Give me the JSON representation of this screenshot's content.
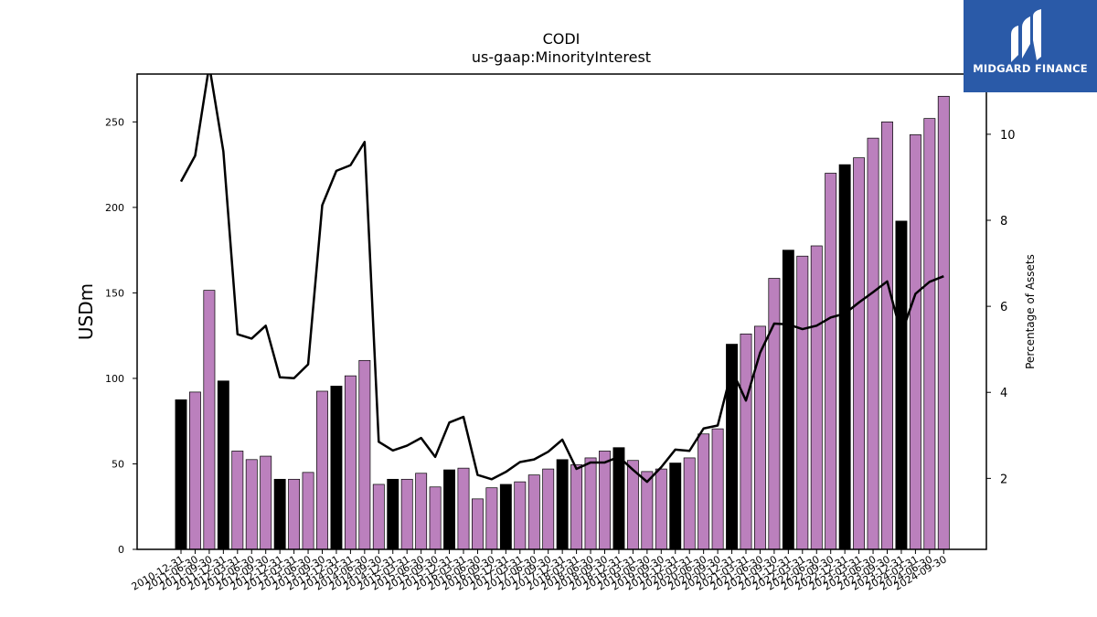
{
  "logo": {
    "text": "MIDGARD FINANCE",
    "icon": "midgard-logo-icon",
    "background": "#2a5aa8"
  },
  "chart_data": {
    "type": "bar",
    "title": "CODI",
    "subtitle": "us-gaap:MinorityInterest",
    "ylabel": "USDm",
    "y2label": "Percentage of Assets",
    "ylim": [
      0,
      278
    ],
    "y2lim": [
      0.35,
      11.4
    ],
    "yticks": [
      0,
      50,
      100,
      150,
      200,
      250
    ],
    "y2ticks": [
      2,
      4,
      6,
      8,
      10
    ],
    "grid": false,
    "legend": "none",
    "colors": {
      "annual": "#000000",
      "quarterly": "#bb80bd",
      "line": "#000000"
    },
    "categories": [
      "2010-12-31",
      "2011-06-30",
      "2011-09-30",
      "2011-12-31",
      "2012-03-31",
      "2012-06-30",
      "2012-09-30",
      "2012-12-31",
      "2013-03-31",
      "2013-06-30",
      "2013-09-30",
      "2013-12-31",
      "2014-03-31",
      "2014-06-30",
      "2014-09-30",
      "2014-12-31",
      "2015-03-31",
      "2015-06-30",
      "2015-09-30",
      "2015-12-31",
      "2016-03-31",
      "2016-06-30",
      "2016-09-30",
      "2016-12-31",
      "2017-03-31",
      "2017-06-30",
      "2017-09-30",
      "2017-12-31",
      "2018-03-31",
      "2018-06-30",
      "2018-09-30",
      "2018-12-31",
      "2019-03-31",
      "2019-06-30",
      "2019-09-30",
      "2019-12-31",
      "2020-03-31",
      "2020-06-30",
      "2020-09-30",
      "2020-12-31",
      "2021-03-31",
      "2021-06-30",
      "2021-09-30",
      "2021-12-31",
      "2022-03-31",
      "2022-06-30",
      "2022-09-30",
      "2022-12-31",
      "2023-03-31",
      "2023-06-30",
      "2023-09-30",
      "2023-12-31",
      "2024-03-31",
      "2024-06-30",
      "2024-09-30"
    ],
    "series": [
      {
        "kind": "bar",
        "values": [
          87.5,
          92,
          151.5,
          98.5,
          57.5,
          52.5,
          54.5,
          41,
          41,
          45,
          92.5,
          95.5,
          101.5,
          110.5,
          38,
          41,
          41,
          44.5,
          36.5,
          46.5,
          47.5,
          29.5,
          36,
          38,
          39.5,
          43.5,
          47,
          52.5,
          49.5,
          53.5,
          57.5,
          59.5,
          52,
          45.5,
          47,
          50.5,
          53.5,
          67.5,
          70.5,
          120,
          126,
          130.5,
          158.5,
          175,
          171.5,
          177.5,
          220,
          225,
          229,
          240.5,
          250,
          192,
          242.5,
          252,
          265
        ],
        "annual": [
          true,
          false,
          false,
          true,
          false,
          false,
          false,
          true,
          false,
          false,
          false,
          true,
          false,
          false,
          false,
          true,
          false,
          false,
          false,
          true,
          false,
          false,
          false,
          true,
          false,
          false,
          false,
          true,
          false,
          false,
          false,
          true,
          false,
          false,
          false,
          true,
          false,
          false,
          false,
          true,
          false,
          false,
          false,
          true,
          false,
          false,
          false,
          true,
          false,
          false,
          false,
          true,
          false,
          false,
          false
        ]
      },
      {
        "kind": "line",
        "axis": "y2",
        "values": [
          8.9,
          9.5,
          11.6,
          9.6,
          5.35,
          5.25,
          5.55,
          4.35,
          4.33,
          4.65,
          8.35,
          9.15,
          9.28,
          9.82,
          2.85,
          2.65,
          2.76,
          2.94,
          2.5,
          3.3,
          3.43,
          2.08,
          1.98,
          2.15,
          2.38,
          2.44,
          2.62,
          2.9,
          2.22,
          2.37,
          2.37,
          2.5,
          2.2,
          1.92,
          2.26,
          2.67,
          2.64,
          3.16,
          3.23,
          4.52,
          3.81,
          4.92,
          5.6,
          5.58,
          5.47,
          5.55,
          5.74,
          5.83,
          6.09,
          6.33,
          6.58,
          5.35,
          6.29,
          6.57,
          6.7
        ]
      }
    ]
  }
}
